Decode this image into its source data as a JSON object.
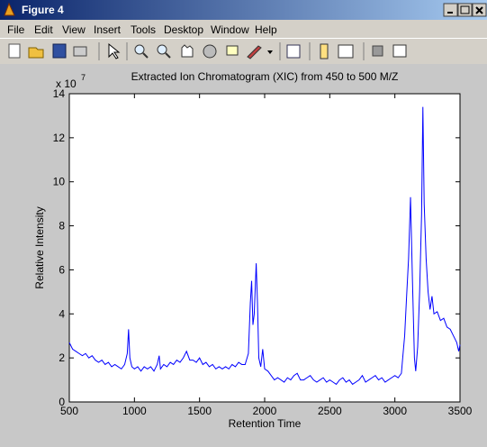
{
  "window": {
    "title": "Figure 4"
  },
  "menu": [
    "File",
    "Edit",
    "View",
    "Insert",
    "Tools",
    "Desktop",
    "Window",
    "Help"
  ],
  "chart_data": {
    "type": "line",
    "title": "Extracted Ion Chromatogram (XIC) from 450 to 500 M/Z",
    "xlabel": "Retention Time",
    "ylabel": "Relative Intensity",
    "y_exponent": {
      "base": "x 10",
      "power": "7"
    },
    "xlim": [
      500,
      3500
    ],
    "xticks": [
      500,
      1000,
      1500,
      2000,
      2500,
      3000,
      3500
    ],
    "ylim": [
      0,
      14
    ],
    "yticks": [
      0,
      2,
      4,
      6,
      8,
      10,
      12,
      14
    ],
    "grid": false,
    "x": [
      500,
      525,
      550,
      575,
      600,
      625,
      650,
      675,
      700,
      725,
      750,
      775,
      800,
      825,
      850,
      875,
      900,
      925,
      945,
      955,
      965,
      980,
      1000,
      1025,
      1050,
      1075,
      1100,
      1125,
      1150,
      1175,
      1190,
      1200,
      1225,
      1250,
      1275,
      1300,
      1325,
      1350,
      1375,
      1400,
      1425,
      1450,
      1475,
      1500,
      1525,
      1550,
      1575,
      1600,
      1625,
      1650,
      1675,
      1700,
      1725,
      1750,
      1775,
      1800,
      1825,
      1850,
      1875,
      1890,
      1900,
      1910,
      1920,
      1935,
      1945,
      1955,
      1970,
      1985,
      2000,
      2025,
      2050,
      2075,
      2100,
      2125,
      2150,
      2175,
      2200,
      2225,
      2250,
      2275,
      2300,
      2325,
      2350,
      2375,
      2400,
      2425,
      2450,
      2475,
      2500,
      2525,
      2550,
      2575,
      2600,
      2625,
      2650,
      2675,
      2700,
      2725,
      2750,
      2775,
      2800,
      2825,
      2850,
      2875,
      2900,
      2925,
      2950,
      2975,
      3000,
      3025,
      3050,
      3060,
      3075,
      3090,
      3105,
      3120,
      3135,
      3150,
      3160,
      3175,
      3190,
      3205,
      3215,
      3225,
      3240,
      3255,
      3270,
      3285,
      3300,
      3325,
      3350,
      3375,
      3400,
      3425,
      3450,
      3475,
      3490,
      3500
    ],
    "series": [
      {
        "color": "#0000ff",
        "values": [
          2.7,
          2.4,
          2.3,
          2.2,
          2.1,
          2.2,
          2.0,
          2.1,
          1.9,
          1.8,
          1.9,
          1.7,
          1.8,
          1.6,
          1.7,
          1.6,
          1.5,
          1.7,
          2.2,
          3.3,
          2.0,
          1.6,
          1.5,
          1.6,
          1.4,
          1.6,
          1.5,
          1.6,
          1.4,
          1.7,
          2.1,
          1.5,
          1.7,
          1.6,
          1.8,
          1.7,
          1.9,
          1.8,
          2.0,
          2.3,
          1.9,
          1.9,
          1.8,
          2.0,
          1.7,
          1.8,
          1.6,
          1.7,
          1.5,
          1.6,
          1.5,
          1.6,
          1.5,
          1.7,
          1.6,
          1.8,
          1.7,
          1.7,
          2.2,
          4.5,
          5.5,
          3.5,
          4.0,
          6.3,
          4.5,
          2.0,
          1.6,
          2.4,
          1.5,
          1.4,
          1.2,
          1.0,
          1.1,
          1.0,
          0.9,
          1.1,
          1.0,
          1.2,
          1.3,
          1.0,
          1.0,
          1.1,
          1.2,
          1.0,
          0.9,
          1.0,
          1.1,
          0.9,
          1.0,
          0.9,
          0.8,
          1.0,
          1.1,
          0.9,
          1.0,
          0.8,
          0.9,
          1.0,
          1.2,
          0.9,
          1.0,
          1.1,
          1.2,
          1.0,
          1.1,
          0.9,
          1.0,
          1.1,
          1.2,
          1.1,
          1.3,
          2.0,
          3.0,
          4.8,
          6.5,
          9.3,
          5.5,
          2.0,
          1.4,
          2.5,
          5.0,
          8.5,
          13.4,
          9.0,
          6.5,
          5.0,
          4.2,
          4.8,
          4.0,
          4.1,
          3.7,
          3.8,
          3.4,
          3.3,
          3.0,
          2.7,
          2.3,
          2.6
        ]
      }
    ]
  }
}
